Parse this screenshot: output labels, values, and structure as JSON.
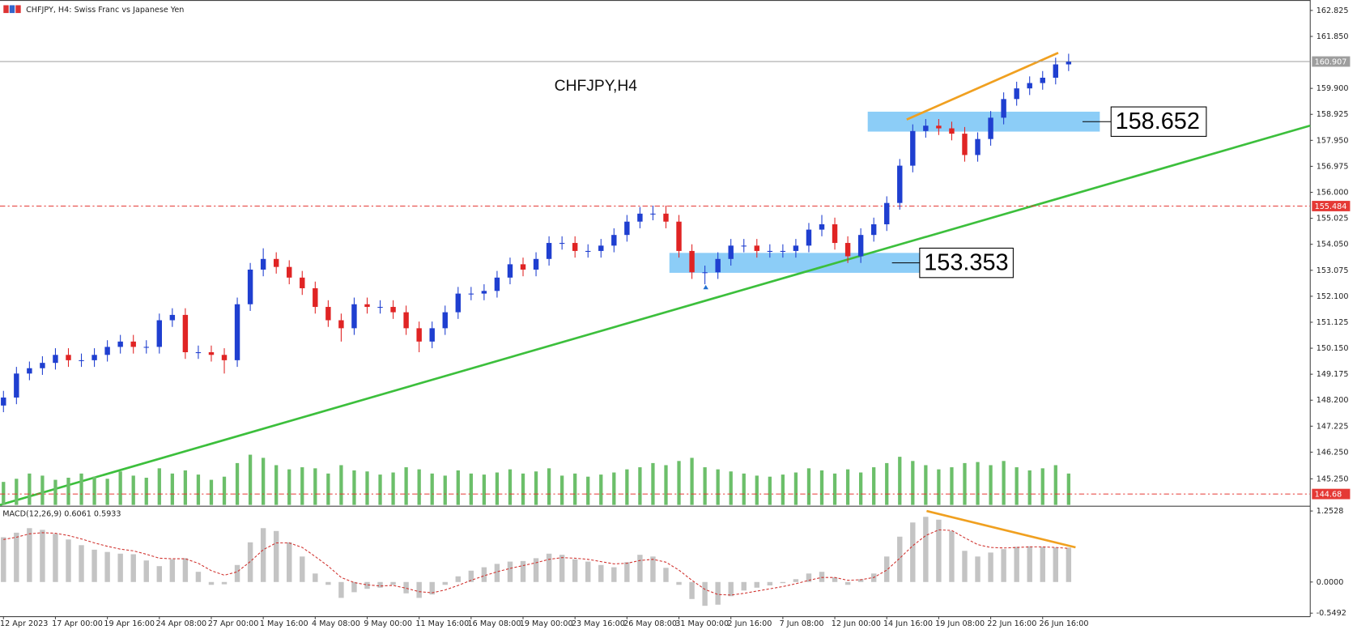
{
  "header": {
    "title": "CHFJPY, H4:  Swiss Franc vs Japanese Yen",
    "center_label": "CHFJPY,H4"
  },
  "chart_data": [
    {
      "type": "candlestick",
      "categories": [
        "12 Apr 2023",
        null,
        null,
        null,
        "17 Apr 00:00",
        null,
        null,
        null,
        "19 Apr 16:00",
        null,
        null,
        null,
        "24 Apr 08:00",
        null,
        null,
        null,
        "27 Apr 00:00",
        null,
        null,
        null,
        "1 May 16:00",
        null,
        null,
        null,
        "4 May 08:00",
        null,
        null,
        null,
        "9 May 00:00",
        null,
        null,
        null,
        "11 May 16:00",
        null,
        null,
        null,
        "16 May 08:00",
        null,
        null,
        null,
        "19 May 00:00",
        null,
        null,
        null,
        "23 May 16:00",
        null,
        null,
        null,
        "26 May 08:00",
        null,
        null,
        null,
        "31 May 00:00",
        null,
        null,
        null,
        "2 Jun 16:00",
        null,
        null,
        null,
        "7 Jun 08:00",
        null,
        null,
        null,
        "12 Jun 00:00",
        null,
        null,
        null,
        "14 Jun 16:00",
        null,
        null,
        null,
        "19 Jun 08:00",
        null,
        null,
        null,
        "22 Jun 16:00",
        null,
        null,
        null,
        "26 Jun 16:00",
        null,
        null
      ],
      "open": [
        148.0,
        148.3,
        149.2,
        149.4,
        149.6,
        149.9,
        149.7,
        149.7,
        149.9,
        150.2,
        150.4,
        150.2,
        150.2,
        151.2,
        151.4,
        150.0,
        150.0,
        149.9,
        149.7,
        151.8,
        153.1,
        153.5,
        153.2,
        152.8,
        152.4,
        151.7,
        151.2,
        150.9,
        151.8,
        151.7,
        151.7,
        151.5,
        150.9,
        150.4,
        150.9,
        151.5,
        152.2,
        152.2,
        152.3,
        152.8,
        153.3,
        153.1,
        153.5,
        154.1,
        154.1,
        153.8,
        153.8,
        154.0,
        154.4,
        154.9,
        155.2,
        155.2,
        154.9,
        153.8,
        153.0,
        153.0,
        153.5,
        154.0,
        154.0,
        153.8,
        153.8,
        153.8,
        154.0,
        154.6,
        154.8,
        154.1,
        153.6,
        154.4,
        154.8,
        155.6,
        157.0,
        158.3,
        158.5,
        158.4,
        158.2,
        157.4,
        158.0,
        158.8,
        159.5,
        159.9,
        160.1,
        160.3,
        160.8
      ],
      "high": [
        148.55,
        149.45,
        149.65,
        149.85,
        150.15,
        150.15,
        149.95,
        150.15,
        150.45,
        150.65,
        150.65,
        150.45,
        151.45,
        151.65,
        151.65,
        150.25,
        150.25,
        150.15,
        152.05,
        153.35,
        153.9,
        153.75,
        153.45,
        153.05,
        152.65,
        151.95,
        151.45,
        152.05,
        152.05,
        151.95,
        151.95,
        151.75,
        151.15,
        151.15,
        151.75,
        152.45,
        152.45,
        152.55,
        153.05,
        153.55,
        153.55,
        153.75,
        154.35,
        154.35,
        154.35,
        154.05,
        154.25,
        154.65,
        155.15,
        155.45,
        155.5,
        155.5,
        155.15,
        154.05,
        153.25,
        153.75,
        154.25,
        154.25,
        154.25,
        154.05,
        154.05,
        154.25,
        154.85,
        155.15,
        155.05,
        154.35,
        154.65,
        155.05,
        155.85,
        157.25,
        158.55,
        158.75,
        158.75,
        158.65,
        158.45,
        158.25,
        159.05,
        159.75,
        160.15,
        160.35,
        160.55,
        161.05,
        161.2
      ],
      "low": [
        147.75,
        148.05,
        148.95,
        149.15,
        149.35,
        149.45,
        149.45,
        149.45,
        149.65,
        149.95,
        149.95,
        149.95,
        149.95,
        150.95,
        149.75,
        149.75,
        149.65,
        149.2,
        149.45,
        151.55,
        152.85,
        152.95,
        152.55,
        152.15,
        151.45,
        150.95,
        150.4,
        150.65,
        151.45,
        151.45,
        151.25,
        150.65,
        150.0,
        150.15,
        150.65,
        151.25,
        151.95,
        151.95,
        152.05,
        152.55,
        152.85,
        152.85,
        153.25,
        153.85,
        153.55,
        153.55,
        153.55,
        153.75,
        154.15,
        154.65,
        154.95,
        154.65,
        153.55,
        152.75,
        152.55,
        152.75,
        153.25,
        153.75,
        153.55,
        153.55,
        153.55,
        153.55,
        153.75,
        154.35,
        153.85,
        153.35,
        153.35,
        154.15,
        154.55,
        155.35,
        156.75,
        158.05,
        158.15,
        157.95,
        157.15,
        157.15,
        157.75,
        158.55,
        159.25,
        159.65,
        159.85,
        160.05,
        160.55
      ],
      "close": [
        148.3,
        149.2,
        149.4,
        149.6,
        149.9,
        149.7,
        149.7,
        149.9,
        150.2,
        150.4,
        150.2,
        150.2,
        151.2,
        151.4,
        150.0,
        150.0,
        149.9,
        149.7,
        151.8,
        153.1,
        153.5,
        153.2,
        152.8,
        152.4,
        151.7,
        151.2,
        150.9,
        151.8,
        151.7,
        151.7,
        151.5,
        150.9,
        150.4,
        150.9,
        151.5,
        152.2,
        152.2,
        152.3,
        152.8,
        153.3,
        153.1,
        153.5,
        154.1,
        154.1,
        153.8,
        153.8,
        154.0,
        154.4,
        154.9,
        155.2,
        155.2,
        154.9,
        153.8,
        153.0,
        153.0,
        153.5,
        154.0,
        154.0,
        153.8,
        153.8,
        153.8,
        154.0,
        154.6,
        154.8,
        154.1,
        153.6,
        154.4,
        154.8,
        155.6,
        157.0,
        158.3,
        158.5,
        158.4,
        158.2,
        157.4,
        158.0,
        158.8,
        159.5,
        159.9,
        160.1,
        160.3,
        160.8,
        160.9
      ],
      "volume": [
        22,
        25,
        30,
        28,
        24,
        26,
        30,
        27,
        25,
        32,
        28,
        26,
        35,
        30,
        33,
        29,
        24,
        27,
        40,
        48,
        45,
        38,
        34,
        36,
        35,
        30,
        38,
        33,
        32,
        29,
        31,
        36,
        34,
        30,
        28,
        33,
        30,
        29,
        31,
        34,
        30,
        32,
        35,
        28,
        30,
        27,
        29,
        31,
        34,
        36,
        40,
        38,
        42,
        45,
        36,
        34,
        32,
        30,
        28,
        27,
        29,
        31,
        35,
        33,
        30,
        34,
        31,
        36,
        40,
        46,
        42,
        38,
        34,
        36,
        40,
        41,
        38,
        42,
        36,
        33,
        35,
        38,
        30
      ],
      "up_color": "#1f3fd0",
      "down_color": "#e02424",
      "volume_color": "#6cbf6a",
      "ylim": [
        144.27,
        163.15
      ],
      "yticks": [
        162.825,
        {
          "value": 161.85,
          "label": "161.850"
        },
        {
          "value": 159.9,
          "label": "159.900"
        },
        158.925,
        {
          "value": 157.95,
          "label": "157.950"
        },
        156.975,
        {
          "value": 156,
          "label": "156.000"
        },
        155.025,
        {
          "value": 154.05,
          "label": "154.050"
        },
        153.075,
        {
          "value": 152.1,
          "label": "152.100"
        },
        151.125,
        {
          "value": 150.15,
          "label": "150.150"
        },
        149.175,
        {
          "value": 148.2,
          "label": "148.200"
        },
        147.225,
        {
          "value": 146.25,
          "label": "146.250"
        },
        {
          "value": 145.25,
          "label": "145.250"
        }
      ],
      "price_lines": [
        {
          "value": 160.907,
          "color": "#9e9e9e",
          "dashed": false
        },
        {
          "value": 155.484,
          "color": "#e53935",
          "dashed": true
        },
        {
          "value": 144.68,
          "color": "#e53935",
          "dashed": true
        }
      ],
      "annotations": [
        158.652,
        153.353
      ],
      "grid": false
    },
    {
      "type": "macd",
      "title": "MACD(12,26,9) 0.6061 0.5933",
      "histogram": [
        0.79,
        0.87,
        0.95,
        0.92,
        0.85,
        0.75,
        0.65,
        0.57,
        0.53,
        0.5,
        0.49,
        0.38,
        0.28,
        0.4,
        0.42,
        0.18,
        -0.05,
        -0.04,
        0.3,
        0.7,
        0.95,
        0.9,
        0.7,
        0.45,
        0.15,
        -0.05,
        -0.28,
        -0.18,
        -0.12,
        -0.1,
        -0.05,
        -0.2,
        -0.28,
        -0.22,
        -0.05,
        0.1,
        0.2,
        0.26,
        0.32,
        0.36,
        0.37,
        0.42,
        0.5,
        0.48,
        0.4,
        0.36,
        0.3,
        0.26,
        0.35,
        0.48,
        0.45,
        0.25,
        -0.05,
        -0.3,
        -0.42,
        -0.4,
        -0.25,
        -0.15,
        -0.1,
        -0.06,
        -0.02,
        0.05,
        0.15,
        0.18,
        0.08,
        -0.05,
        0.05,
        0.15,
        0.45,
        0.8,
        1.05,
        1.15,
        1.1,
        0.9,
        0.55,
        0.45,
        0.52,
        0.58,
        0.62,
        0.63,
        0.62,
        0.61,
        0.6061
      ],
      "signal": [
        0.75,
        0.79,
        0.85,
        0.87,
        0.86,
        0.82,
        0.76,
        0.69,
        0.63,
        0.58,
        0.55,
        0.49,
        0.42,
        0.41,
        0.41,
        0.33,
        0.2,
        0.12,
        0.18,
        0.36,
        0.57,
        0.69,
        0.69,
        0.61,
        0.45,
        0.28,
        0.08,
        -0.01,
        -0.05,
        -0.07,
        -0.06,
        -0.11,
        -0.17,
        -0.19,
        -0.14,
        -0.06,
        0.03,
        0.11,
        0.18,
        0.24,
        0.29,
        0.34,
        0.4,
        0.43,
        0.42,
        0.4,
        0.36,
        0.32,
        0.33,
        0.38,
        0.4,
        0.35,
        0.21,
        0.03,
        -0.13,
        -0.22,
        -0.23,
        -0.2,
        -0.16,
        -0.12,
        -0.08,
        -0.03,
        0.03,
        0.08,
        0.08,
        0.03,
        0.04,
        0.08,
        0.21,
        0.42,
        0.64,
        0.82,
        0.92,
        0.91,
        0.78,
        0.66,
        0.61,
        0.6,
        0.61,
        0.62,
        0.62,
        0.61,
        0.5933
      ],
      "histogram_color": "#c4c4c4",
      "signal_color": "#d0312d",
      "ylim": [
        -0.611,
        1.314
      ],
      "yticks": [
        1.2528,
        {
          "value": 0,
          "label": "0.0000"
        },
        -0.5492
      ]
    }
  ]
}
